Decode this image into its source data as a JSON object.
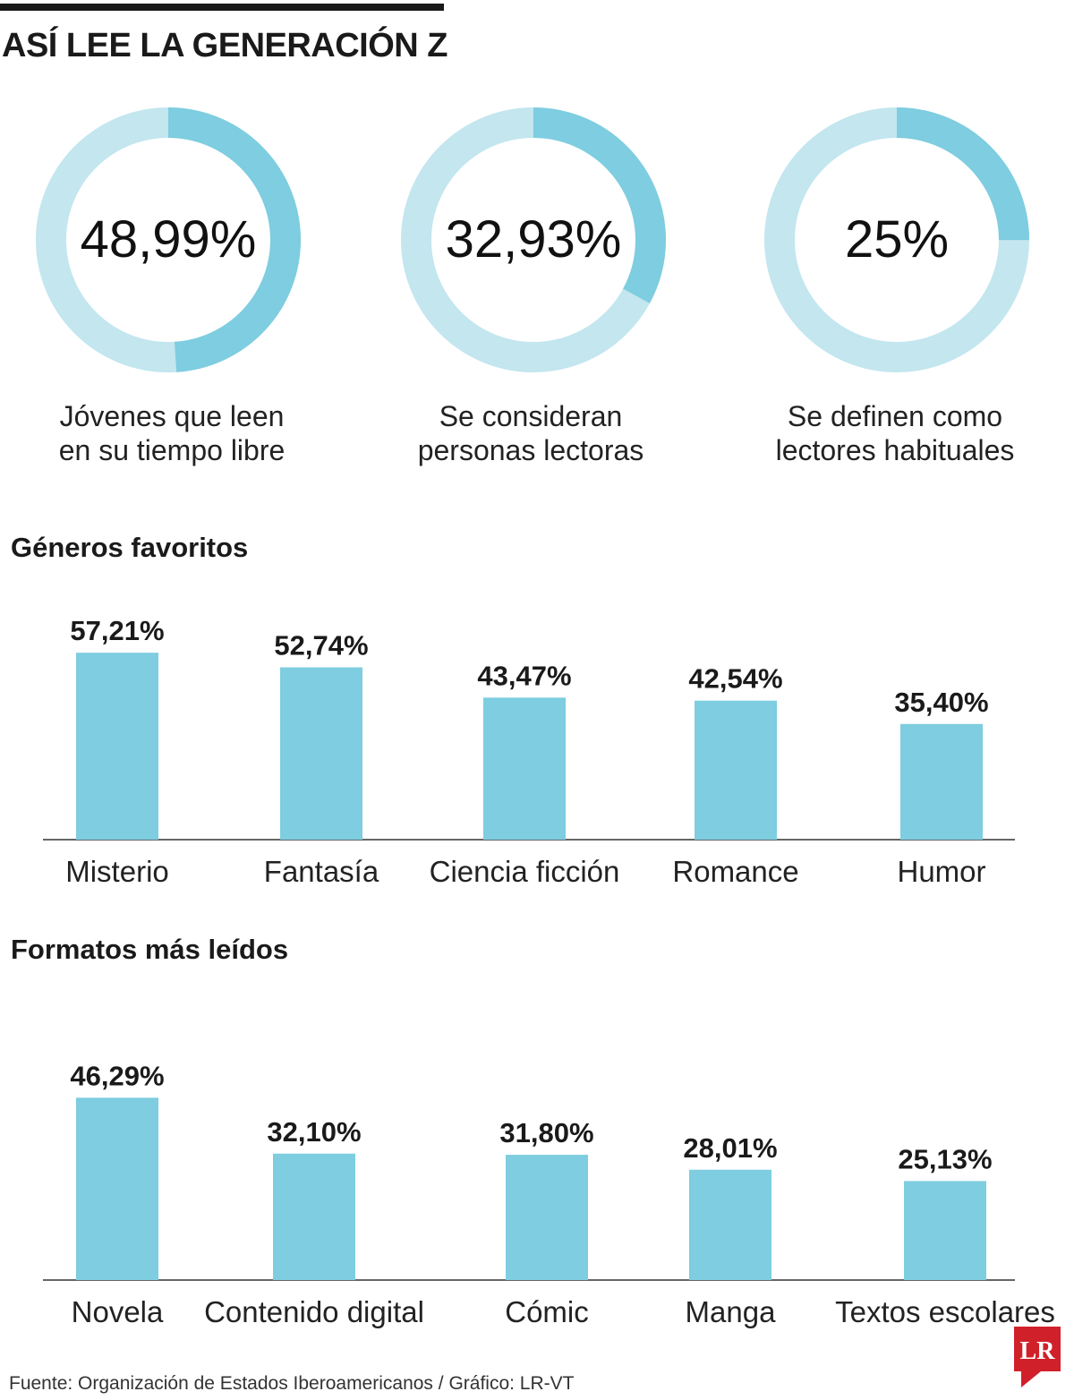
{
  "title": "ASÍ LEE LA GENERACIÓN Z",
  "colors": {
    "accent": "#7ecde0",
    "track": "#c3e6ef",
    "text": "#1a1a1a",
    "logo": "#d0212a"
  },
  "donuts": [
    {
      "value": 48.99,
      "value_label": "48,99%",
      "caption_line1": "Jóvenes que leen",
      "caption_line2": "en su tiempo libre"
    },
    {
      "value": 32.93,
      "value_label": "32,93%",
      "caption_line1": "Se consideran",
      "caption_line2": "personas lectoras"
    },
    {
      "value": 25,
      "value_label": "25%",
      "caption_line1": "Se definen como",
      "caption_line2": "lectores habituales"
    }
  ],
  "chart_data": [
    {
      "type": "bar",
      "title": "Géneros favoritos",
      "categories": [
        "Misterio",
        "Fantasía",
        "Ciencia ficción",
        "Romance",
        "Humor"
      ],
      "values": [
        57.21,
        52.74,
        43.47,
        42.54,
        35.4
      ],
      "labels": [
        "57,21%",
        "52,74%",
        "43,47%",
        "42,54%",
        "35,40%"
      ],
      "ylim": [
        0,
        65
      ],
      "grid": false
    },
    {
      "type": "bar",
      "title": "Formatos más leídos",
      "categories": [
        "Novela",
        "Contenido digital",
        "Cómic",
        "Manga",
        "Textos escolares"
      ],
      "values": [
        46.29,
        32.1,
        31.8,
        28.01,
        25.13
      ],
      "labels": [
        "46,29%",
        "32,10%",
        "31,80%",
        "28,01%",
        "25,13%"
      ],
      "ylim": [
        0,
        65
      ],
      "grid": false
    }
  ],
  "source": "Fuente: Organización de Estados Iberoamericanos / Gráfico: LR-VT",
  "logo": {
    "text": "LR",
    "icon": "lr-logo-icon"
  }
}
